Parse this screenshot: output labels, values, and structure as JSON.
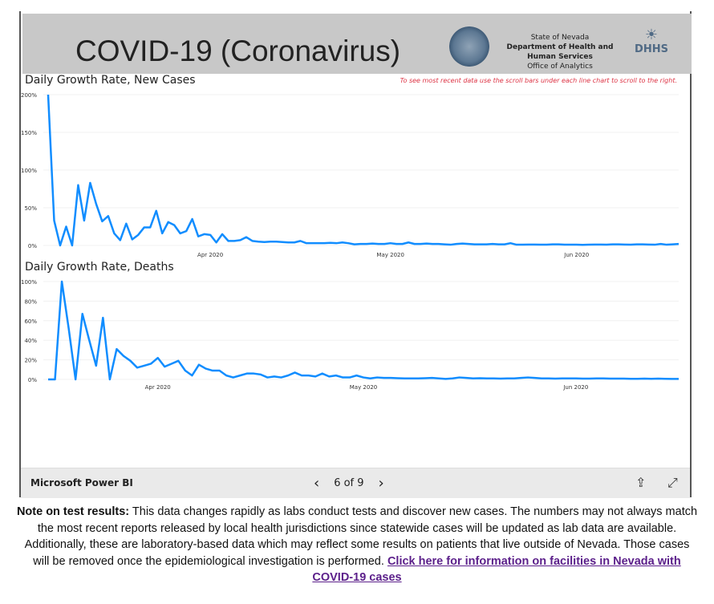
{
  "header": {
    "title": "COVID-19 (Coronavirus)",
    "org_lines": [
      "State of Nevada",
      "Department of Health and",
      "Human Services",
      "Office of Analytics"
    ],
    "logo_text": "DHHS"
  },
  "hint": "To see most recent data use the scroll bars under each line chart to scroll to the right.",
  "chart_data": [
    {
      "type": "line",
      "title": "Daily Growth Rate, New Cases",
      "ylabel": "",
      "xlabel": "",
      "ylim": [
        0,
        200
      ],
      "yticks": [
        "0%",
        "50%",
        "100%",
        "150%",
        "200%"
      ],
      "ytick_values": [
        0,
        50,
        100,
        150,
        200
      ],
      "x_ticks": [
        {
          "label": "Apr 2020",
          "index": 27
        },
        {
          "label": "May 2020",
          "index": 57
        },
        {
          "label": "Jun 2020",
          "index": 88
        }
      ],
      "values": [
        200,
        33,
        0,
        25,
        0,
        80,
        33,
        83,
        55,
        32,
        39,
        16,
        7,
        29,
        8,
        14,
        24,
        24,
        46,
        16,
        31,
        27,
        16,
        19,
        35,
        12,
        15,
        14,
        4,
        15,
        6,
        6,
        7,
        11,
        6,
        5,
        4.5,
        5,
        5,
        4.5,
        4,
        4,
        6,
        3,
        3,
        3,
        3,
        3.5,
        3,
        4,
        3,
        1.5,
        2,
        2,
        2.5,
        2,
        2,
        3,
        2,
        2,
        4,
        2,
        2,
        2.5,
        2,
        2,
        1.5,
        1,
        2,
        2.5,
        2,
        1.5,
        1.5,
        1.5,
        2,
        1.5,
        1.5,
        3,
        1,
        1,
        1.2,
        1.2,
        1,
        1,
        1.5,
        1.5,
        1,
        1,
        1,
        0.8,
        1,
        1.2,
        1.2,
        1,
        1.5,
        1.5,
        1.2,
        1,
        1.5,
        1.5,
        1.2,
        1,
        2,
        1,
        1.5,
        2
      ],
      "color": "#118dff"
    },
    {
      "type": "line",
      "title": "Daily Growth Rate, Deaths",
      "ylim": [
        0,
        100
      ],
      "yticks": [
        "0%",
        "20%",
        "40%",
        "60%",
        "80%",
        "100%"
      ],
      "ytick_values": [
        0,
        20,
        40,
        60,
        80,
        100
      ],
      "x_ticks": [
        {
          "label": "Apr 2020",
          "index": 16
        },
        {
          "label": "May 2020",
          "index": 46
        },
        {
          "label": "Jun 2020",
          "index": 77
        }
      ],
      "values": [
        0,
        0,
        100,
        52,
        0,
        67,
        40,
        14,
        63,
        0,
        31,
        24,
        19,
        12,
        14,
        16,
        22,
        13,
        16,
        19,
        9,
        4,
        15,
        11,
        9,
        9,
        4,
        2,
        4,
        6,
        6,
        5,
        2,
        3,
        2,
        4,
        7,
        4,
        4,
        3,
        6,
        3,
        4,
        2,
        2,
        4,
        2,
        1,
        2,
        1.5,
        1.5,
        1.2,
        1,
        1,
        1,
        1.2,
        1.5,
        1,
        0.5,
        1,
        2,
        1.5,
        1,
        1.2,
        1,
        1,
        0.8,
        1,
        1,
        1.5,
        2,
        1.5,
        1,
        1,
        0.8,
        1,
        1,
        1,
        0.8,
        0.8,
        1,
        1,
        0.8,
        0.8,
        0.8,
        0.6,
        0.6,
        0.8,
        0.6,
        0.8,
        0.6,
        0.5,
        0.5
      ],
      "color": "#118dff"
    }
  ],
  "footer": {
    "brand": "Microsoft Power BI",
    "page": "6 of 9"
  },
  "note": {
    "bold": "Note on test results:",
    "text": " This data changes rapidly as labs conduct tests and discover new cases. The numbers may not always match the most recent reports released by local health jurisdictions since statewide cases will be updated as lab data are available. Additionally, these are laboratory-based data which may reflect some results on patients that live outside of Nevada. Those cases will be removed once the epidemiological investigation is performed. ",
    "link": "Click here for information on facilities in Nevada with COVID-19 cases"
  }
}
